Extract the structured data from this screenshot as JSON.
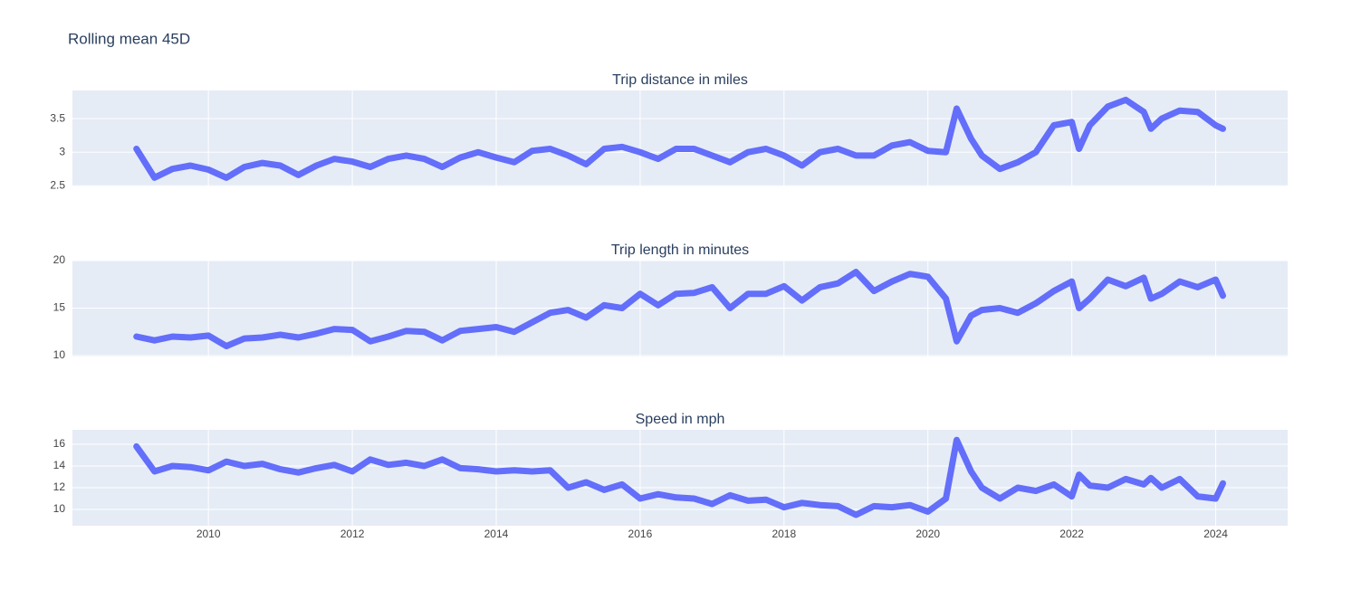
{
  "title": "Rolling mean 45D",
  "chart_data": [
    {
      "type": "line",
      "title": "Trip distance in miles",
      "color": "#636efa",
      "grid": true,
      "x": [
        2009.0,
        2009.25,
        2009.5,
        2009.75,
        2010.0,
        2010.25,
        2010.5,
        2010.75,
        2011.0,
        2011.25,
        2011.5,
        2011.75,
        2012.0,
        2012.25,
        2012.5,
        2012.75,
        2013.0,
        2013.25,
        2013.5,
        2013.75,
        2014.0,
        2014.25,
        2014.5,
        2014.75,
        2015.0,
        2015.25,
        2015.5,
        2015.75,
        2016.0,
        2016.25,
        2016.5,
        2016.75,
        2017.0,
        2017.25,
        2017.5,
        2017.75,
        2018.0,
        2018.25,
        2018.5,
        2018.75,
        2019.0,
        2019.25,
        2019.5,
        2019.75,
        2020.0,
        2020.25,
        2020.4,
        2020.6,
        2020.75,
        2021.0,
        2021.25,
        2021.5,
        2021.75,
        2022.0,
        2022.1,
        2022.25,
        2022.5,
        2022.75,
        2023.0,
        2023.1,
        2023.25,
        2023.5,
        2023.75,
        2024.0,
        2024.1
      ],
      "values": [
        3.05,
        2.62,
        2.75,
        2.8,
        2.74,
        2.62,
        2.78,
        2.84,
        2.8,
        2.66,
        2.8,
        2.9,
        2.86,
        2.78,
        2.9,
        2.95,
        2.9,
        2.78,
        2.92,
        3.0,
        2.92,
        2.85,
        3.02,
        3.05,
        2.95,
        2.82,
        3.05,
        3.08,
        3.0,
        2.9,
        3.05,
        3.05,
        2.95,
        2.85,
        3.0,
        3.05,
        2.95,
        2.8,
        3.0,
        3.05,
        2.95,
        2.95,
        3.1,
        3.15,
        3.02,
        3.0,
        3.65,
        3.2,
        2.95,
        2.75,
        2.85,
        3.0,
        3.4,
        3.45,
        3.05,
        3.4,
        3.68,
        3.78,
        3.6,
        3.35,
        3.5,
        3.62,
        3.6,
        3.4,
        3.35
      ],
      "xlim": [
        2008.11,
        2025.0
      ],
      "xticks": [
        2010,
        2012,
        2014,
        2016,
        2018,
        2020,
        2022,
        2024
      ],
      "ylim": [
        2.49,
        3.92
      ],
      "yticks": [
        2.5,
        3,
        3.5
      ]
    },
    {
      "type": "line",
      "title": "Trip length in minutes",
      "color": "#636efa",
      "grid": true,
      "x": [
        2009.0,
        2009.25,
        2009.5,
        2009.75,
        2010.0,
        2010.25,
        2010.5,
        2010.75,
        2011.0,
        2011.25,
        2011.5,
        2011.75,
        2012.0,
        2012.25,
        2012.5,
        2012.75,
        2013.0,
        2013.25,
        2013.5,
        2013.75,
        2014.0,
        2014.25,
        2014.5,
        2014.75,
        2015.0,
        2015.25,
        2015.5,
        2015.75,
        2016.0,
        2016.25,
        2016.5,
        2016.75,
        2017.0,
        2017.25,
        2017.5,
        2017.75,
        2018.0,
        2018.25,
        2018.5,
        2018.75,
        2019.0,
        2019.25,
        2019.5,
        2019.75,
        2020.0,
        2020.25,
        2020.4,
        2020.6,
        2020.75,
        2021.0,
        2021.25,
        2021.5,
        2021.75,
        2022.0,
        2022.1,
        2022.25,
        2022.5,
        2022.75,
        2023.0,
        2023.1,
        2023.25,
        2023.5,
        2023.75,
        2024.0,
        2024.1
      ],
      "values": [
        12.0,
        11.6,
        12.0,
        11.9,
        12.1,
        11.0,
        11.8,
        11.9,
        12.2,
        11.9,
        12.3,
        12.8,
        12.7,
        11.5,
        12.0,
        12.6,
        12.5,
        11.6,
        12.6,
        12.8,
        13.0,
        12.5,
        13.5,
        14.5,
        14.8,
        14.0,
        15.3,
        15.0,
        16.5,
        15.3,
        16.5,
        16.6,
        17.2,
        15.0,
        16.5,
        16.5,
        17.3,
        15.8,
        17.2,
        17.6,
        18.8,
        16.8,
        17.8,
        18.6,
        18.3,
        16.0,
        11.5,
        14.2,
        14.8,
        15.0,
        14.5,
        15.5,
        16.8,
        17.8,
        15.0,
        16.0,
        18.0,
        17.3,
        18.2,
        16.0,
        16.5,
        17.8,
        17.2,
        18.0,
        16.3
      ],
      "xlim": [
        2008.11,
        2025.0
      ],
      "xticks": [
        2010,
        2012,
        2014,
        2016,
        2018,
        2020,
        2022,
        2024
      ],
      "ylim": [
        9.9,
        20.0
      ],
      "yticks": [
        10,
        15,
        20
      ]
    },
    {
      "type": "line",
      "title": "Speed in mph",
      "color": "#636efa",
      "grid": true,
      "x": [
        2009.0,
        2009.25,
        2009.5,
        2009.75,
        2010.0,
        2010.25,
        2010.5,
        2010.75,
        2011.0,
        2011.25,
        2011.5,
        2011.75,
        2012.0,
        2012.25,
        2012.5,
        2012.75,
        2013.0,
        2013.25,
        2013.5,
        2013.75,
        2014.0,
        2014.25,
        2014.5,
        2014.75,
        2015.0,
        2015.25,
        2015.5,
        2015.75,
        2016.0,
        2016.25,
        2016.5,
        2016.75,
        2017.0,
        2017.25,
        2017.5,
        2017.75,
        2018.0,
        2018.25,
        2018.5,
        2018.75,
        2019.0,
        2019.25,
        2019.5,
        2019.75,
        2020.0,
        2020.25,
        2020.4,
        2020.6,
        2020.75,
        2021.0,
        2021.25,
        2021.5,
        2021.75,
        2022.0,
        2022.1,
        2022.25,
        2022.5,
        2022.75,
        2023.0,
        2023.1,
        2023.25,
        2023.5,
        2023.75,
        2024.0,
        2024.1
      ],
      "values": [
        15.8,
        13.5,
        14.0,
        13.9,
        13.6,
        14.4,
        14.0,
        14.2,
        13.7,
        13.4,
        13.8,
        14.1,
        13.5,
        14.6,
        14.1,
        14.3,
        14.0,
        14.6,
        13.8,
        13.7,
        13.5,
        13.6,
        13.5,
        13.6,
        12.0,
        12.5,
        11.8,
        12.3,
        11.0,
        11.4,
        11.1,
        11.0,
        10.5,
        11.3,
        10.8,
        10.9,
        10.2,
        10.6,
        10.4,
        10.3,
        9.5,
        10.3,
        10.2,
        10.4,
        9.8,
        11.0,
        16.4,
        13.5,
        12.0,
        11.0,
        12.0,
        11.7,
        12.3,
        11.2,
        13.2,
        12.2,
        12.0,
        12.8,
        12.3,
        12.9,
        12.0,
        12.8,
        11.2,
        11.0,
        12.4
      ],
      "xlim": [
        2008.11,
        2025.0
      ],
      "xticks": [
        2010,
        2012,
        2014,
        2016,
        2018,
        2020,
        2022,
        2024
      ],
      "ylim": [
        8.5,
        17.33
      ],
      "yticks": [
        10,
        12,
        14,
        16
      ],
      "show_xtick_labels": true
    }
  ]
}
